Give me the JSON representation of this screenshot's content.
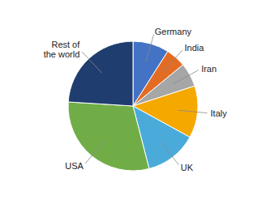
{
  "chart_data": {
    "type": "pie",
    "categories": [
      "Germany",
      "India",
      "Iran",
      "Italy",
      "UK",
      "USA",
      "Rest of\nthe world"
    ],
    "values": [
      9,
      5,
      6,
      13,
      13,
      30,
      24
    ],
    "colors": [
      "#4472C4",
      "#E36C24",
      "#A6A6A6",
      "#F5A800",
      "#4AABDB",
      "#70AD47",
      "#1F3D6E"
    ]
  }
}
